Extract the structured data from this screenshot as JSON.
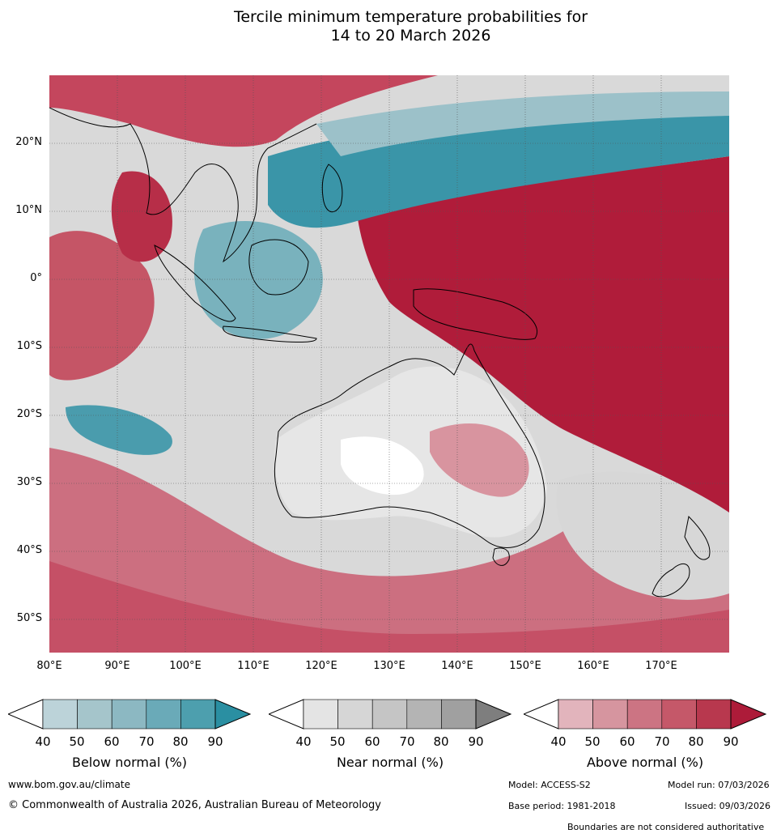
{
  "title": {
    "line1": "Tercile minimum temperature probabilities for",
    "line2": "14 to 20 March 2026"
  },
  "axes": {
    "lat_ticks": [
      "20°N",
      "10°N",
      "0°",
      "10°S",
      "20°S",
      "30°S",
      "40°S",
      "50°S"
    ],
    "lon_ticks": [
      "80°E",
      "90°E",
      "100°E",
      "110°E",
      "120°E",
      "130°E",
      "140°E",
      "150°E",
      "160°E",
      "170°E"
    ]
  },
  "legend": {
    "ticks": [
      "40",
      "50",
      "60",
      "70",
      "80",
      "90"
    ],
    "below": {
      "label": "Below normal (%)",
      "colors": [
        "#ffffff",
        "#bcd3d9",
        "#a5c5cb",
        "#8cb8c2",
        "#6aaab8",
        "#4d9fae",
        "#2a8fa2"
      ]
    },
    "near": {
      "label": "Near normal (%)",
      "colors": [
        "#ffffff",
        "#e4e4e4",
        "#d6d6d6",
        "#c5c5c5",
        "#b4b4b4",
        "#a0a0a0",
        "#7e7e7e"
      ]
    },
    "above": {
      "label": "Above normal (%)",
      "colors": [
        "#ffffff",
        "#e2b4bc",
        "#d6959f",
        "#cc7483",
        "#c55869",
        "#b8384e",
        "#ad1b39"
      ]
    }
  },
  "footer": {
    "website": "www.bom.gov.au/climate",
    "copyright": "© Commonwealth of Australia 2026, Australian Bureau of Meteorology",
    "model": "Model: ACCESS-S2",
    "model_run": "Model run: 07/03/2026",
    "base_period": "Base period: 1981-2018",
    "issued": "Issued: 09/03/2026",
    "disclaimer": "Boundaries are not considered authoritative"
  }
}
